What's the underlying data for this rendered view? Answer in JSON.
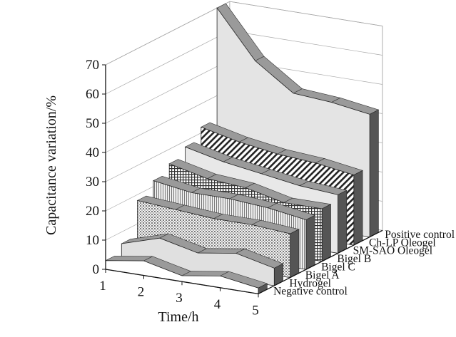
{
  "chart_data": {
    "type": "area",
    "variant": "3d-ribbon",
    "title": "",
    "xlabel": "Time/h",
    "ylabel": "Capacitance variation/%",
    "x": [
      1,
      2,
      3,
      4,
      5
    ],
    "x_ticks": [
      "1",
      "2",
      "3",
      "4",
      "5"
    ],
    "ylim": [
      0,
      70
    ],
    "y_ticks": [
      "0",
      "10",
      "20",
      "30",
      "40",
      "50",
      "60",
      "70"
    ],
    "grid": true,
    "series": [
      {
        "name": "Negative control",
        "values": [
          3,
          5,
          2,
          4,
          2
        ],
        "fill": "#ffffff",
        "pattern": "solid-white"
      },
      {
        "name": "Hydrogel",
        "values": [
          6,
          10,
          7,
          9,
          6
        ],
        "fill": "#e0e0e0",
        "pattern": "light-gray"
      },
      {
        "name": "Bigel A",
        "values": [
          18,
          17,
          16,
          16,
          15
        ],
        "fill": "#d8d8d8",
        "pattern": "dots"
      },
      {
        "name": "Bigel C",
        "values": [
          22,
          20,
          20,
          19,
          17
        ],
        "fill": "#cfcfcf",
        "pattern": "vertical-hatch"
      },
      {
        "name": "Bigel B",
        "values": [
          25,
          22,
          21,
          18,
          18
        ],
        "fill": "#c8c8c8",
        "pattern": "grid-hatch"
      },
      {
        "name": "SM-SAO Oleogel",
        "values": [
          28,
          25,
          23,
          21,
          20
        ],
        "fill": "#e8e8e8",
        "pattern": "light-gray"
      },
      {
        "name": "Ch-LP Oleogel",
        "values": [
          32,
          29,
          27,
          26,
          24
        ],
        "fill": "#bdbdbd",
        "pattern": "diagonal-hatch"
      },
      {
        "name": "Positive control",
        "values": [
          70,
          54,
          45,
          44,
          42
        ],
        "fill": "#e4e4e4",
        "pattern": "light-gray"
      }
    ]
  }
}
